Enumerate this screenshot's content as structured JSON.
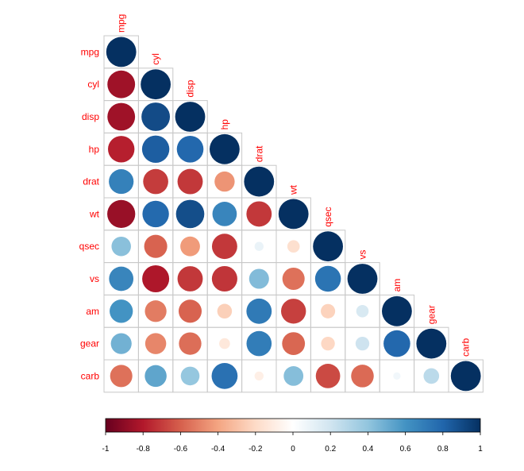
{
  "chart_data": {
    "type": "heatmap",
    "variables": [
      "mpg",
      "cyl",
      "disp",
      "hp",
      "drat",
      "wt",
      "qsec",
      "vs",
      "am",
      "gear",
      "carb"
    ],
    "matrix": [
      [
        1.0,
        -0.85,
        -0.85,
        -0.78,
        0.68,
        -0.87,
        0.42,
        0.66,
        0.6,
        0.48,
        -0.55
      ],
      [
        -0.85,
        1.0,
        0.9,
        0.83,
        -0.7,
        0.78,
        -0.59,
        -0.81,
        -0.52,
        -0.49,
        0.53
      ],
      [
        -0.85,
        0.9,
        1.0,
        0.79,
        -0.71,
        0.89,
        -0.43,
        -0.71,
        -0.59,
        -0.56,
        0.39
      ],
      [
        -0.78,
        0.83,
        0.79,
        1.0,
        -0.45,
        0.66,
        -0.71,
        -0.72,
        -0.24,
        -0.13,
        0.75
      ],
      [
        0.68,
        -0.7,
        -0.71,
        -0.45,
        1.0,
        -0.71,
        0.09,
        0.44,
        0.71,
        0.7,
        -0.09
      ],
      [
        -0.87,
        0.78,
        0.89,
        0.66,
        -0.71,
        1.0,
        -0.17,
        -0.55,
        -0.69,
        -0.58,
        0.43
      ],
      [
        0.42,
        -0.59,
        -0.43,
        -0.71,
        0.09,
        -0.17,
        1.0,
        0.74,
        -0.23,
        -0.21,
        -0.66
      ],
      [
        0.66,
        -0.81,
        -0.71,
        -0.72,
        0.44,
        -0.55,
        0.74,
        1.0,
        0.17,
        0.21,
        -0.57
      ],
      [
        0.6,
        -0.52,
        -0.59,
        -0.24,
        0.71,
        -0.69,
        -0.23,
        0.17,
        1.0,
        0.79,
        0.06
      ],
      [
        0.48,
        -0.49,
        -0.56,
        -0.13,
        0.7,
        -0.58,
        -0.21,
        0.21,
        0.79,
        1.0,
        0.27
      ],
      [
        -0.55,
        0.53,
        0.39,
        0.75,
        -0.09,
        0.43,
        -0.66,
        -0.57,
        0.06,
        0.27,
        1.0
      ]
    ],
    "triangle": "lower",
    "method": "circle",
    "color_scale": {
      "range": [
        -1,
        1
      ],
      "ticks": [
        "-1",
        "-0.8",
        "-0.6",
        "-0.4",
        "-0.2",
        "0",
        "0.2",
        "0.4",
        "0.6",
        "0.8",
        "1"
      ],
      "colors": [
        "#67001f",
        "#b2182b",
        "#d6604d",
        "#f4a582",
        "#fddbc7",
        "#ffffff",
        "#d1e5f0",
        "#92c5de",
        "#4393c3",
        "#2166ac",
        "#053061"
      ]
    },
    "label_color": "#ff0000",
    "legend": "bottom",
    "grid": true,
    "title": "",
    "xlabel": "",
    "ylabel": ""
  }
}
